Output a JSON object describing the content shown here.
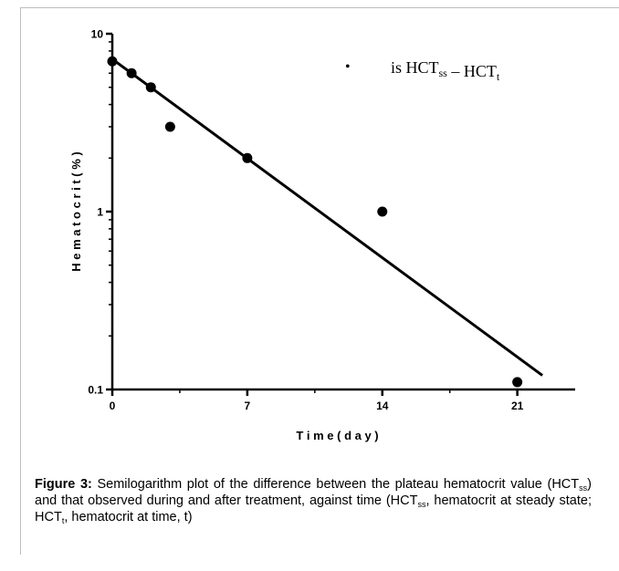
{
  "chart_data": {
    "type": "scatter",
    "scale_y": "log",
    "xlim": [
      0,
      24
    ],
    "ylim": [
      0.1,
      10
    ],
    "x_ticks": [
      "0",
      "7",
      "14",
      "21"
    ],
    "y_ticks": [
      "0.1",
      "1",
      "10"
    ],
    "xlabel": "T i m e  ( d a y )",
    "ylabel": "H e m a t o c r i t  ( % )",
    "points": [
      {
        "x": 0,
        "y": 7
      },
      {
        "x": 1,
        "y": 6
      },
      {
        "x": 2,
        "y": 5
      },
      {
        "x": 3,
        "y": 3
      },
      {
        "x": 7,
        "y": 2
      },
      {
        "x": 14,
        "y": 1
      },
      {
        "x": 21,
        "y": 0.11
      }
    ],
    "fit_line": {
      "x_start": 0,
      "y_start": 7.2,
      "x_end": 22.3,
      "y_end": 0.12
    },
    "legend": {
      "marker": "•",
      "text": "is HCT",
      "sub1": "ss",
      "dash": "–",
      "text2": "HCT",
      "sub2": "t",
      "position": "top-right"
    },
    "grid": false
  },
  "caption": {
    "label": "Figure 3:",
    "p1": " Semilogarithm plot of the difference between the plateau hematocrit value (HCT",
    "s1": "ss",
    "p2": ") and that observed during and after treatment, against time (HCT",
    "s2": "ss",
    "p3": ", hematocrit at steady state; HCT",
    "s3": "t",
    "p4": ", hematocrit at time, t)"
  }
}
